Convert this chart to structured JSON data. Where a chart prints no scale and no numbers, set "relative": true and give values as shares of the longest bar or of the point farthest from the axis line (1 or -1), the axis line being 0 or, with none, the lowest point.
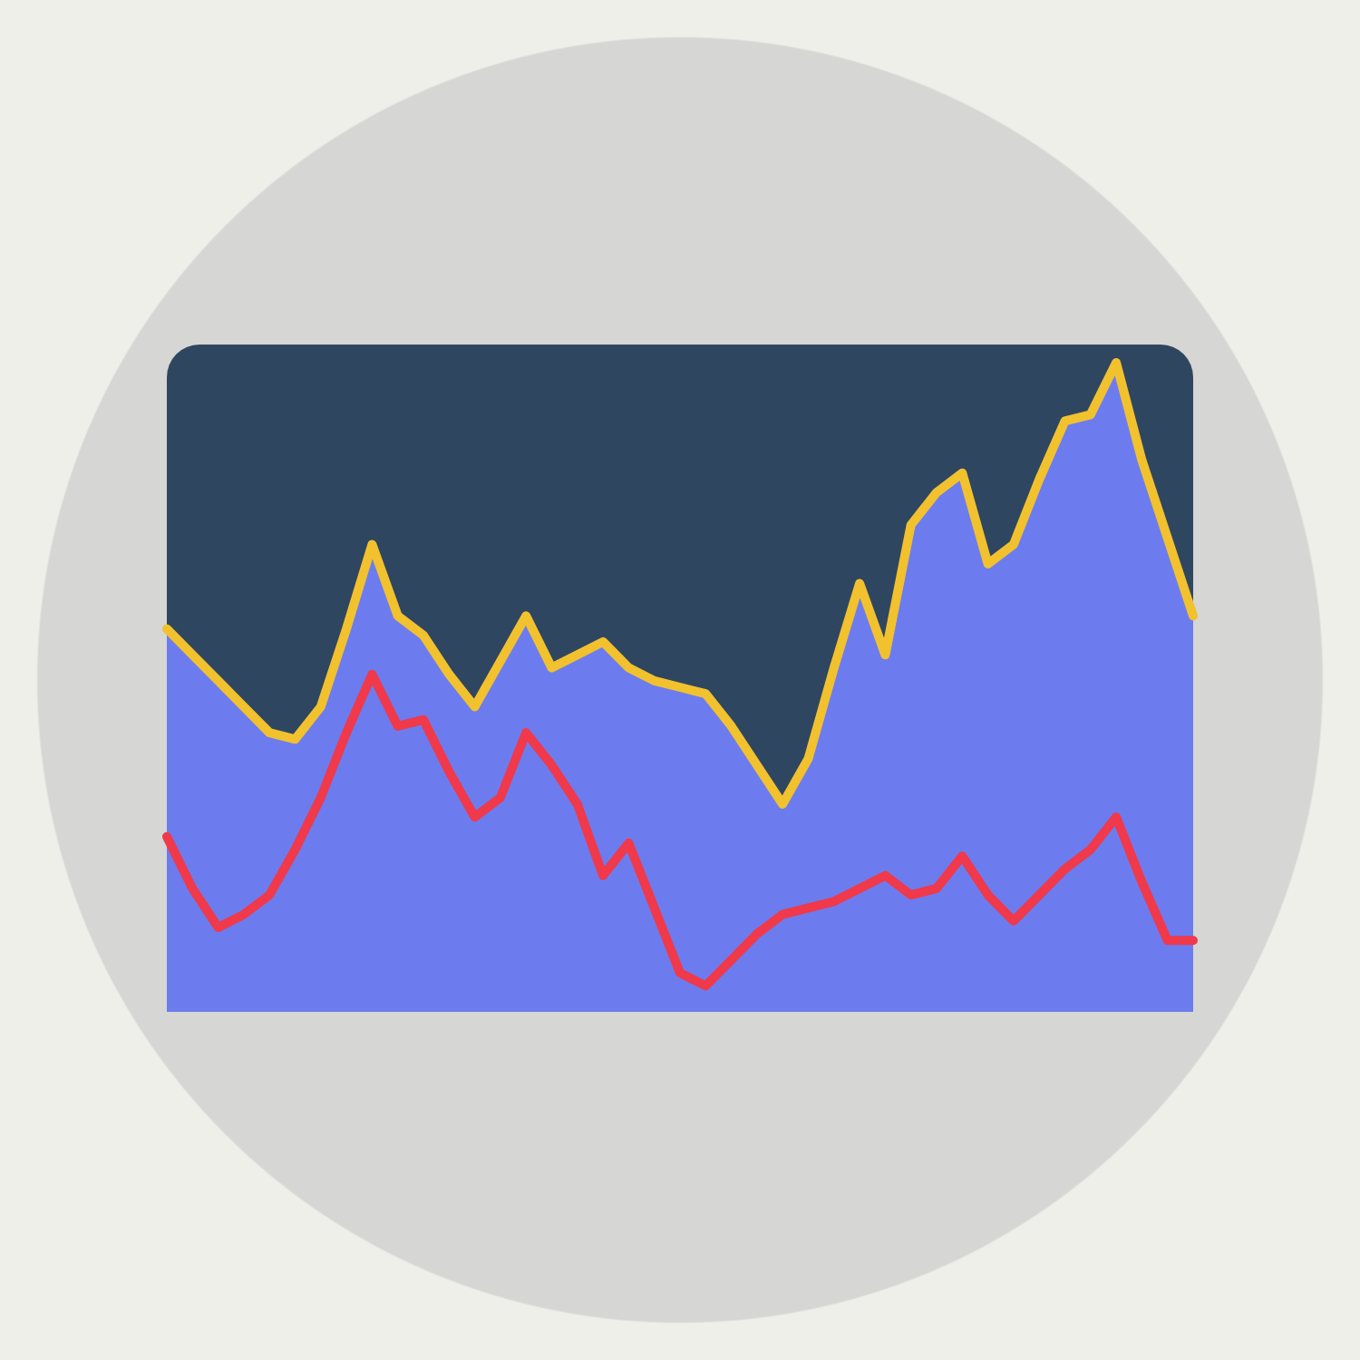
{
  "chart_data": {
    "type": "area",
    "relative": true,
    "marker": "none",
    "line_style": "solid",
    "categories": [
      null,
      null,
      null,
      null,
      null,
      null,
      null,
      null,
      null,
      null,
      null,
      null,
      null,
      null,
      null,
      null,
      null,
      null,
      null,
      null,
      null,
      null,
      null,
      null,
      null,
      null,
      null,
      null,
      null,
      null,
      null,
      null,
      null,
      null,
      null,
      null,
      null,
      null,
      null,
      null,
      null
    ],
    "series": [
      {
        "type": "area",
        "color": "#6c7cef",
        "values": [
          0.59,
          0.55,
          0.51,
          0.47,
          0.43,
          0.42,
          0.47,
          0.59,
          0.72,
          0.61,
          0.58,
          0.52,
          0.47,
          0.54,
          0.61,
          0.53,
          0.55,
          0.57,
          0.53,
          0.51,
          0.5,
          0.49,
          0.44,
          0.38,
          0.32,
          0.39,
          0.53,
          0.66,
          0.55,
          0.75,
          0.8,
          0.83,
          0.69,
          0.72,
          0.82,
          0.91,
          0.92,
          1,
          0.85,
          0.73,
          0.61
        ]
      },
      {
        "type": "line",
        "color": "#f2c12e",
        "values": [
          0.59,
          0.55,
          0.51,
          0.47,
          0.43,
          0.42,
          0.47,
          0.59,
          0.72,
          0.61,
          0.58,
          0.52,
          0.47,
          0.54,
          0.61,
          0.53,
          0.55,
          0.57,
          0.53,
          0.51,
          0.5,
          0.49,
          0.44,
          0.38,
          0.32,
          0.39,
          0.53,
          0.66,
          0.55,
          0.75,
          0.8,
          0.83,
          0.69,
          0.72,
          0.82,
          0.91,
          0.92,
          1,
          0.85,
          0.73,
          0.61
        ]
      },
      {
        "type": "line",
        "color": "#f0394a",
        "values": [
          0.27,
          0.19,
          0.13,
          0.15,
          0.18,
          0.25,
          0.33,
          0.43,
          0.52,
          0.44,
          0.45,
          0.37,
          0.3,
          0.33,
          0.43,
          0.38,
          0.32,
          0.21,
          0.26,
          0.16,
          0.06,
          0.04,
          0.08,
          0.12,
          0.15,
          0.16,
          0.17,
          0.19,
          0.21,
          0.18,
          0.19,
          0.24,
          0.18,
          0.14,
          0.18,
          0.22,
          0.25,
          0.3,
          0.2,
          0.11,
          0.11
        ]
      }
    ]
  }
}
